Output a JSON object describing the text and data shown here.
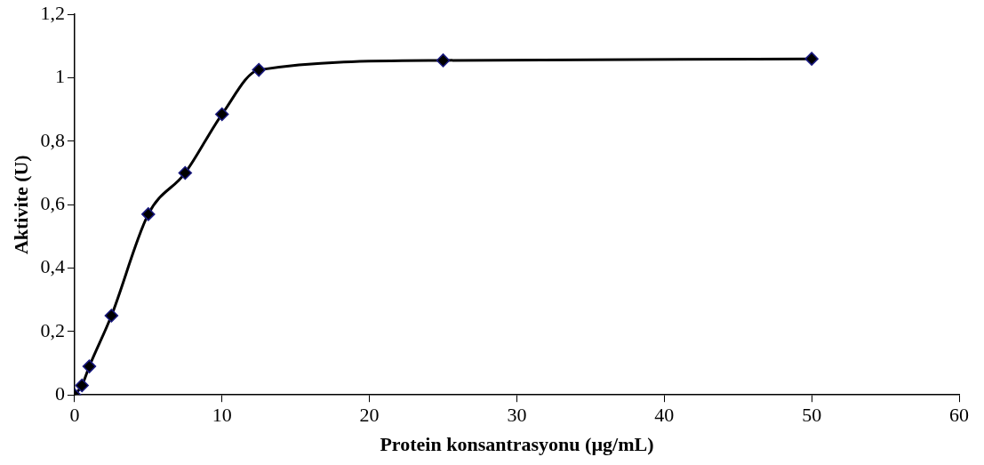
{
  "chart_data": {
    "type": "line",
    "xlabel": "Protein konsantrasyonu (µg/mL)",
    "ylabel": "Aktivite (U)",
    "x": [
      0,
      0.5,
      1,
      2.5,
      5,
      7.5,
      10,
      12.5,
      25,
      50
    ],
    "series": [
      {
        "color": "#000000",
        "values": [
          0,
          0.03,
          0.09,
          0.25,
          0.57,
          0.7,
          0.885,
          1.025,
          1.055,
          1.06
        ]
      }
    ],
    "xlim": [
      0,
      60
    ],
    "xticks": [
      0,
      10,
      20,
      30,
      40,
      50,
      60
    ],
    "ylim": [
      0,
      1.2
    ],
    "yticks": [
      0,
      {
        "value": 0.2,
        "label": "0,2"
      },
      {
        "value": 0.4,
        "label": "0,4"
      },
      {
        "value": 0.6,
        "label": "0,6"
      },
      {
        "value": 0.8,
        "label": "0,8"
      },
      1,
      {
        "value": 1.2,
        "label": "1,2"
      }
    ],
    "marker": "diamond",
    "line_style": "solid",
    "grid": false,
    "legend": false
  }
}
